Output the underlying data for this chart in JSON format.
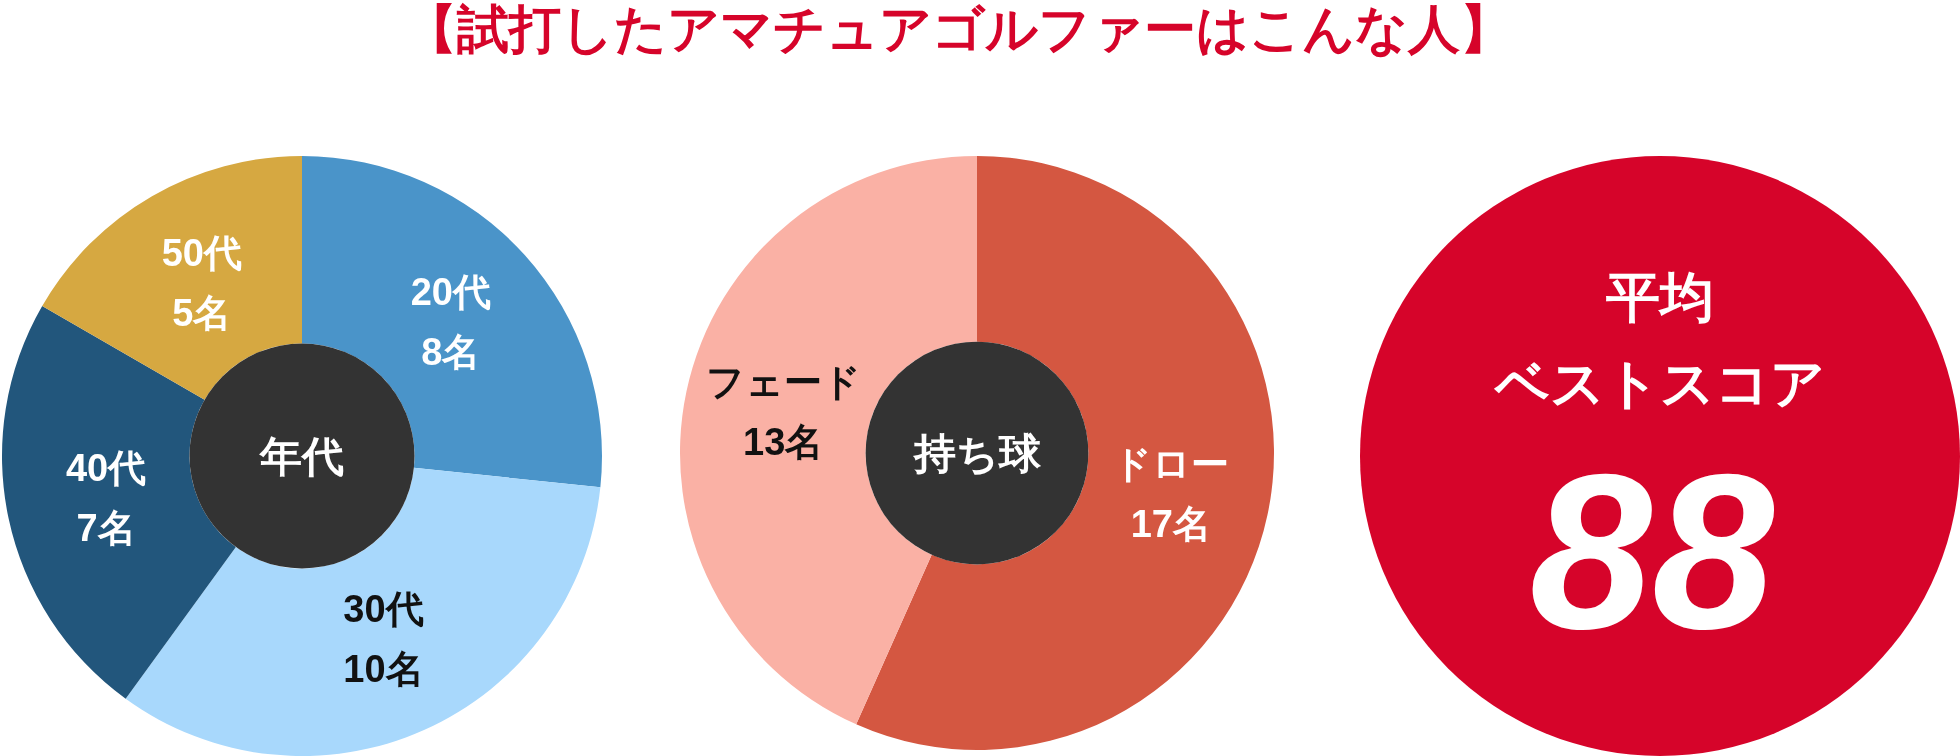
{
  "chart_data": [
    {
      "type": "other",
      "title": "【試打したアマチュアゴルファーはこんな人】"
    },
    {
      "type": "donut",
      "title": "年代",
      "categories": [
        "20代",
        "30代",
        "40代",
        "50代"
      ],
      "values": [
        8,
        10,
        7,
        5
      ],
      "value_labels": [
        "8名",
        "10名",
        "7名",
        "5名"
      ],
      "colors": [
        "#4a94c9",
        "#a8d8fc",
        "#22567c",
        "#d6a841"
      ]
    },
    {
      "type": "donut",
      "title": "持ち球",
      "categories": [
        "ドロー",
        "フェード"
      ],
      "values": [
        17,
        13
      ],
      "value_labels": [
        "17名",
        "13名"
      ],
      "colors": [
        "#d45741",
        "#fab1a5"
      ]
    },
    {
      "type": "other",
      "title": "平均",
      "subtitle": "ベストスコア",
      "annotations": [
        "88"
      ],
      "color": "#d6042a"
    }
  ]
}
